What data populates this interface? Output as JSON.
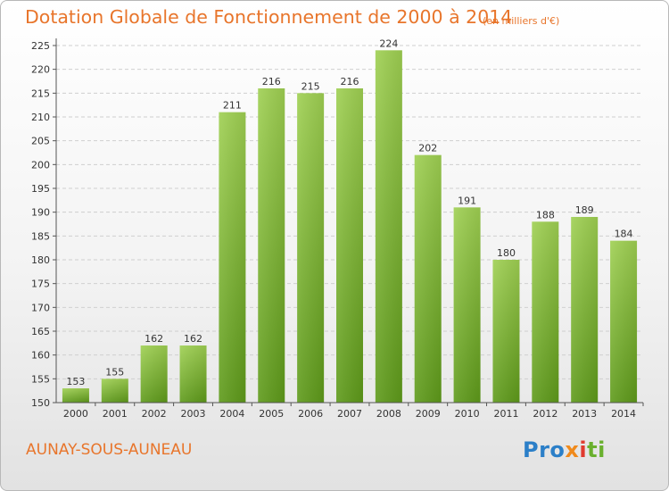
{
  "header": {
    "title": "Dotation Globale de Fonctionnement de 2000 à 2014",
    "unit_note": "(en milliers d'€)"
  },
  "footer": {
    "commune": "AUNAY-SOUS-AUNEAU",
    "brand_parts": [
      "Pro",
      "x",
      "i",
      "ti"
    ]
  },
  "colors": {
    "title": "#e8752b",
    "bar_light": "#9fd052",
    "bar_dark": "#5e9a1a",
    "grid": "#cfcfcf",
    "brand_blue": "#2b7fc8",
    "brand_green": "#6ab02e",
    "brand_orange": "#f08a1c",
    "brand_red": "#e03a2f"
  },
  "chart_data": {
    "type": "bar",
    "title": "Dotation Globale de Fonctionnement de 2000 à 2014",
    "xlabel": "",
    "ylabel": "",
    "categories": [
      "2000",
      "2001",
      "2002",
      "2003",
      "2004",
      "2005",
      "2006",
      "2007",
      "2008",
      "2009",
      "2010",
      "2011",
      "2012",
      "2013",
      "2014"
    ],
    "values": [
      153,
      155,
      162,
      162,
      211,
      216,
      215,
      216,
      224,
      202,
      191,
      180,
      188,
      189,
      184
    ],
    "ylim": [
      150,
      225
    ],
    "ytick_step": 5,
    "yticks": [
      "150",
      "155",
      "160",
      "165",
      "170",
      "175",
      "180",
      "185",
      "190",
      "195",
      "200",
      "205",
      "210",
      "215",
      "220",
      "225"
    ],
    "grid": true,
    "legend": "none"
  }
}
